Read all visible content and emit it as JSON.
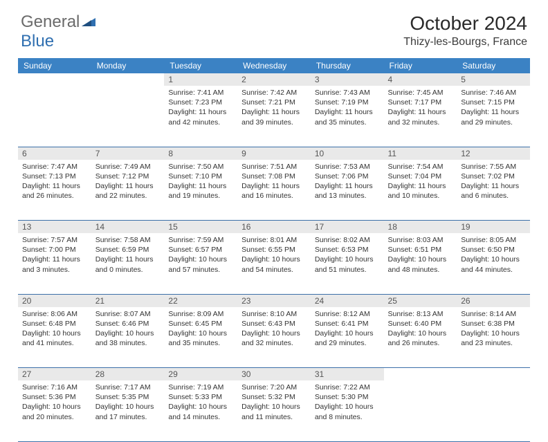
{
  "logo": {
    "text1": "General",
    "text2": "Blue"
  },
  "title": "October 2024",
  "location": "Thizy-les-Bourgs, France",
  "colors": {
    "header_bg": "#3b82c4",
    "header_text": "#ffffff",
    "daynum_bg": "#e9e9e9",
    "daynum_text": "#555555",
    "border": "#3b6fa8",
    "logo_gray": "#6a6a6a",
    "logo_blue": "#2f6fb0"
  },
  "weekdays": [
    "Sunday",
    "Monday",
    "Tuesday",
    "Wednesday",
    "Thursday",
    "Friday",
    "Saturday"
  ],
  "weeks": [
    [
      null,
      null,
      {
        "n": "1",
        "sr": "Sunrise: 7:41 AM",
        "ss": "Sunset: 7:23 PM",
        "dl1": "Daylight: 11 hours",
        "dl2": "and 42 minutes."
      },
      {
        "n": "2",
        "sr": "Sunrise: 7:42 AM",
        "ss": "Sunset: 7:21 PM",
        "dl1": "Daylight: 11 hours",
        "dl2": "and 39 minutes."
      },
      {
        "n": "3",
        "sr": "Sunrise: 7:43 AM",
        "ss": "Sunset: 7:19 PM",
        "dl1": "Daylight: 11 hours",
        "dl2": "and 35 minutes."
      },
      {
        "n": "4",
        "sr": "Sunrise: 7:45 AM",
        "ss": "Sunset: 7:17 PM",
        "dl1": "Daylight: 11 hours",
        "dl2": "and 32 minutes."
      },
      {
        "n": "5",
        "sr": "Sunrise: 7:46 AM",
        "ss": "Sunset: 7:15 PM",
        "dl1": "Daylight: 11 hours",
        "dl2": "and 29 minutes."
      }
    ],
    [
      {
        "n": "6",
        "sr": "Sunrise: 7:47 AM",
        "ss": "Sunset: 7:13 PM",
        "dl1": "Daylight: 11 hours",
        "dl2": "and 26 minutes."
      },
      {
        "n": "7",
        "sr": "Sunrise: 7:49 AM",
        "ss": "Sunset: 7:12 PM",
        "dl1": "Daylight: 11 hours",
        "dl2": "and 22 minutes."
      },
      {
        "n": "8",
        "sr": "Sunrise: 7:50 AM",
        "ss": "Sunset: 7:10 PM",
        "dl1": "Daylight: 11 hours",
        "dl2": "and 19 minutes."
      },
      {
        "n": "9",
        "sr": "Sunrise: 7:51 AM",
        "ss": "Sunset: 7:08 PM",
        "dl1": "Daylight: 11 hours",
        "dl2": "and 16 minutes."
      },
      {
        "n": "10",
        "sr": "Sunrise: 7:53 AM",
        "ss": "Sunset: 7:06 PM",
        "dl1": "Daylight: 11 hours",
        "dl2": "and 13 minutes."
      },
      {
        "n": "11",
        "sr": "Sunrise: 7:54 AM",
        "ss": "Sunset: 7:04 PM",
        "dl1": "Daylight: 11 hours",
        "dl2": "and 10 minutes."
      },
      {
        "n": "12",
        "sr": "Sunrise: 7:55 AM",
        "ss": "Sunset: 7:02 PM",
        "dl1": "Daylight: 11 hours",
        "dl2": "and 6 minutes."
      }
    ],
    [
      {
        "n": "13",
        "sr": "Sunrise: 7:57 AM",
        "ss": "Sunset: 7:00 PM",
        "dl1": "Daylight: 11 hours",
        "dl2": "and 3 minutes."
      },
      {
        "n": "14",
        "sr": "Sunrise: 7:58 AM",
        "ss": "Sunset: 6:59 PM",
        "dl1": "Daylight: 11 hours",
        "dl2": "and 0 minutes."
      },
      {
        "n": "15",
        "sr": "Sunrise: 7:59 AM",
        "ss": "Sunset: 6:57 PM",
        "dl1": "Daylight: 10 hours",
        "dl2": "and 57 minutes."
      },
      {
        "n": "16",
        "sr": "Sunrise: 8:01 AM",
        "ss": "Sunset: 6:55 PM",
        "dl1": "Daylight: 10 hours",
        "dl2": "and 54 minutes."
      },
      {
        "n": "17",
        "sr": "Sunrise: 8:02 AM",
        "ss": "Sunset: 6:53 PM",
        "dl1": "Daylight: 10 hours",
        "dl2": "and 51 minutes."
      },
      {
        "n": "18",
        "sr": "Sunrise: 8:03 AM",
        "ss": "Sunset: 6:51 PM",
        "dl1": "Daylight: 10 hours",
        "dl2": "and 48 minutes."
      },
      {
        "n": "19",
        "sr": "Sunrise: 8:05 AM",
        "ss": "Sunset: 6:50 PM",
        "dl1": "Daylight: 10 hours",
        "dl2": "and 44 minutes."
      }
    ],
    [
      {
        "n": "20",
        "sr": "Sunrise: 8:06 AM",
        "ss": "Sunset: 6:48 PM",
        "dl1": "Daylight: 10 hours",
        "dl2": "and 41 minutes."
      },
      {
        "n": "21",
        "sr": "Sunrise: 8:07 AM",
        "ss": "Sunset: 6:46 PM",
        "dl1": "Daylight: 10 hours",
        "dl2": "and 38 minutes."
      },
      {
        "n": "22",
        "sr": "Sunrise: 8:09 AM",
        "ss": "Sunset: 6:45 PM",
        "dl1": "Daylight: 10 hours",
        "dl2": "and 35 minutes."
      },
      {
        "n": "23",
        "sr": "Sunrise: 8:10 AM",
        "ss": "Sunset: 6:43 PM",
        "dl1": "Daylight: 10 hours",
        "dl2": "and 32 minutes."
      },
      {
        "n": "24",
        "sr": "Sunrise: 8:12 AM",
        "ss": "Sunset: 6:41 PM",
        "dl1": "Daylight: 10 hours",
        "dl2": "and 29 minutes."
      },
      {
        "n": "25",
        "sr": "Sunrise: 8:13 AM",
        "ss": "Sunset: 6:40 PM",
        "dl1": "Daylight: 10 hours",
        "dl2": "and 26 minutes."
      },
      {
        "n": "26",
        "sr": "Sunrise: 8:14 AM",
        "ss": "Sunset: 6:38 PM",
        "dl1": "Daylight: 10 hours",
        "dl2": "and 23 minutes."
      }
    ],
    [
      {
        "n": "27",
        "sr": "Sunrise: 7:16 AM",
        "ss": "Sunset: 5:36 PM",
        "dl1": "Daylight: 10 hours",
        "dl2": "and 20 minutes."
      },
      {
        "n": "28",
        "sr": "Sunrise: 7:17 AM",
        "ss": "Sunset: 5:35 PM",
        "dl1": "Daylight: 10 hours",
        "dl2": "and 17 minutes."
      },
      {
        "n": "29",
        "sr": "Sunrise: 7:19 AM",
        "ss": "Sunset: 5:33 PM",
        "dl1": "Daylight: 10 hours",
        "dl2": "and 14 minutes."
      },
      {
        "n": "30",
        "sr": "Sunrise: 7:20 AM",
        "ss": "Sunset: 5:32 PM",
        "dl1": "Daylight: 10 hours",
        "dl2": "and 11 minutes."
      },
      {
        "n": "31",
        "sr": "Sunrise: 7:22 AM",
        "ss": "Sunset: 5:30 PM",
        "dl1": "Daylight: 10 hours",
        "dl2": "and 8 minutes."
      },
      null,
      null
    ]
  ]
}
